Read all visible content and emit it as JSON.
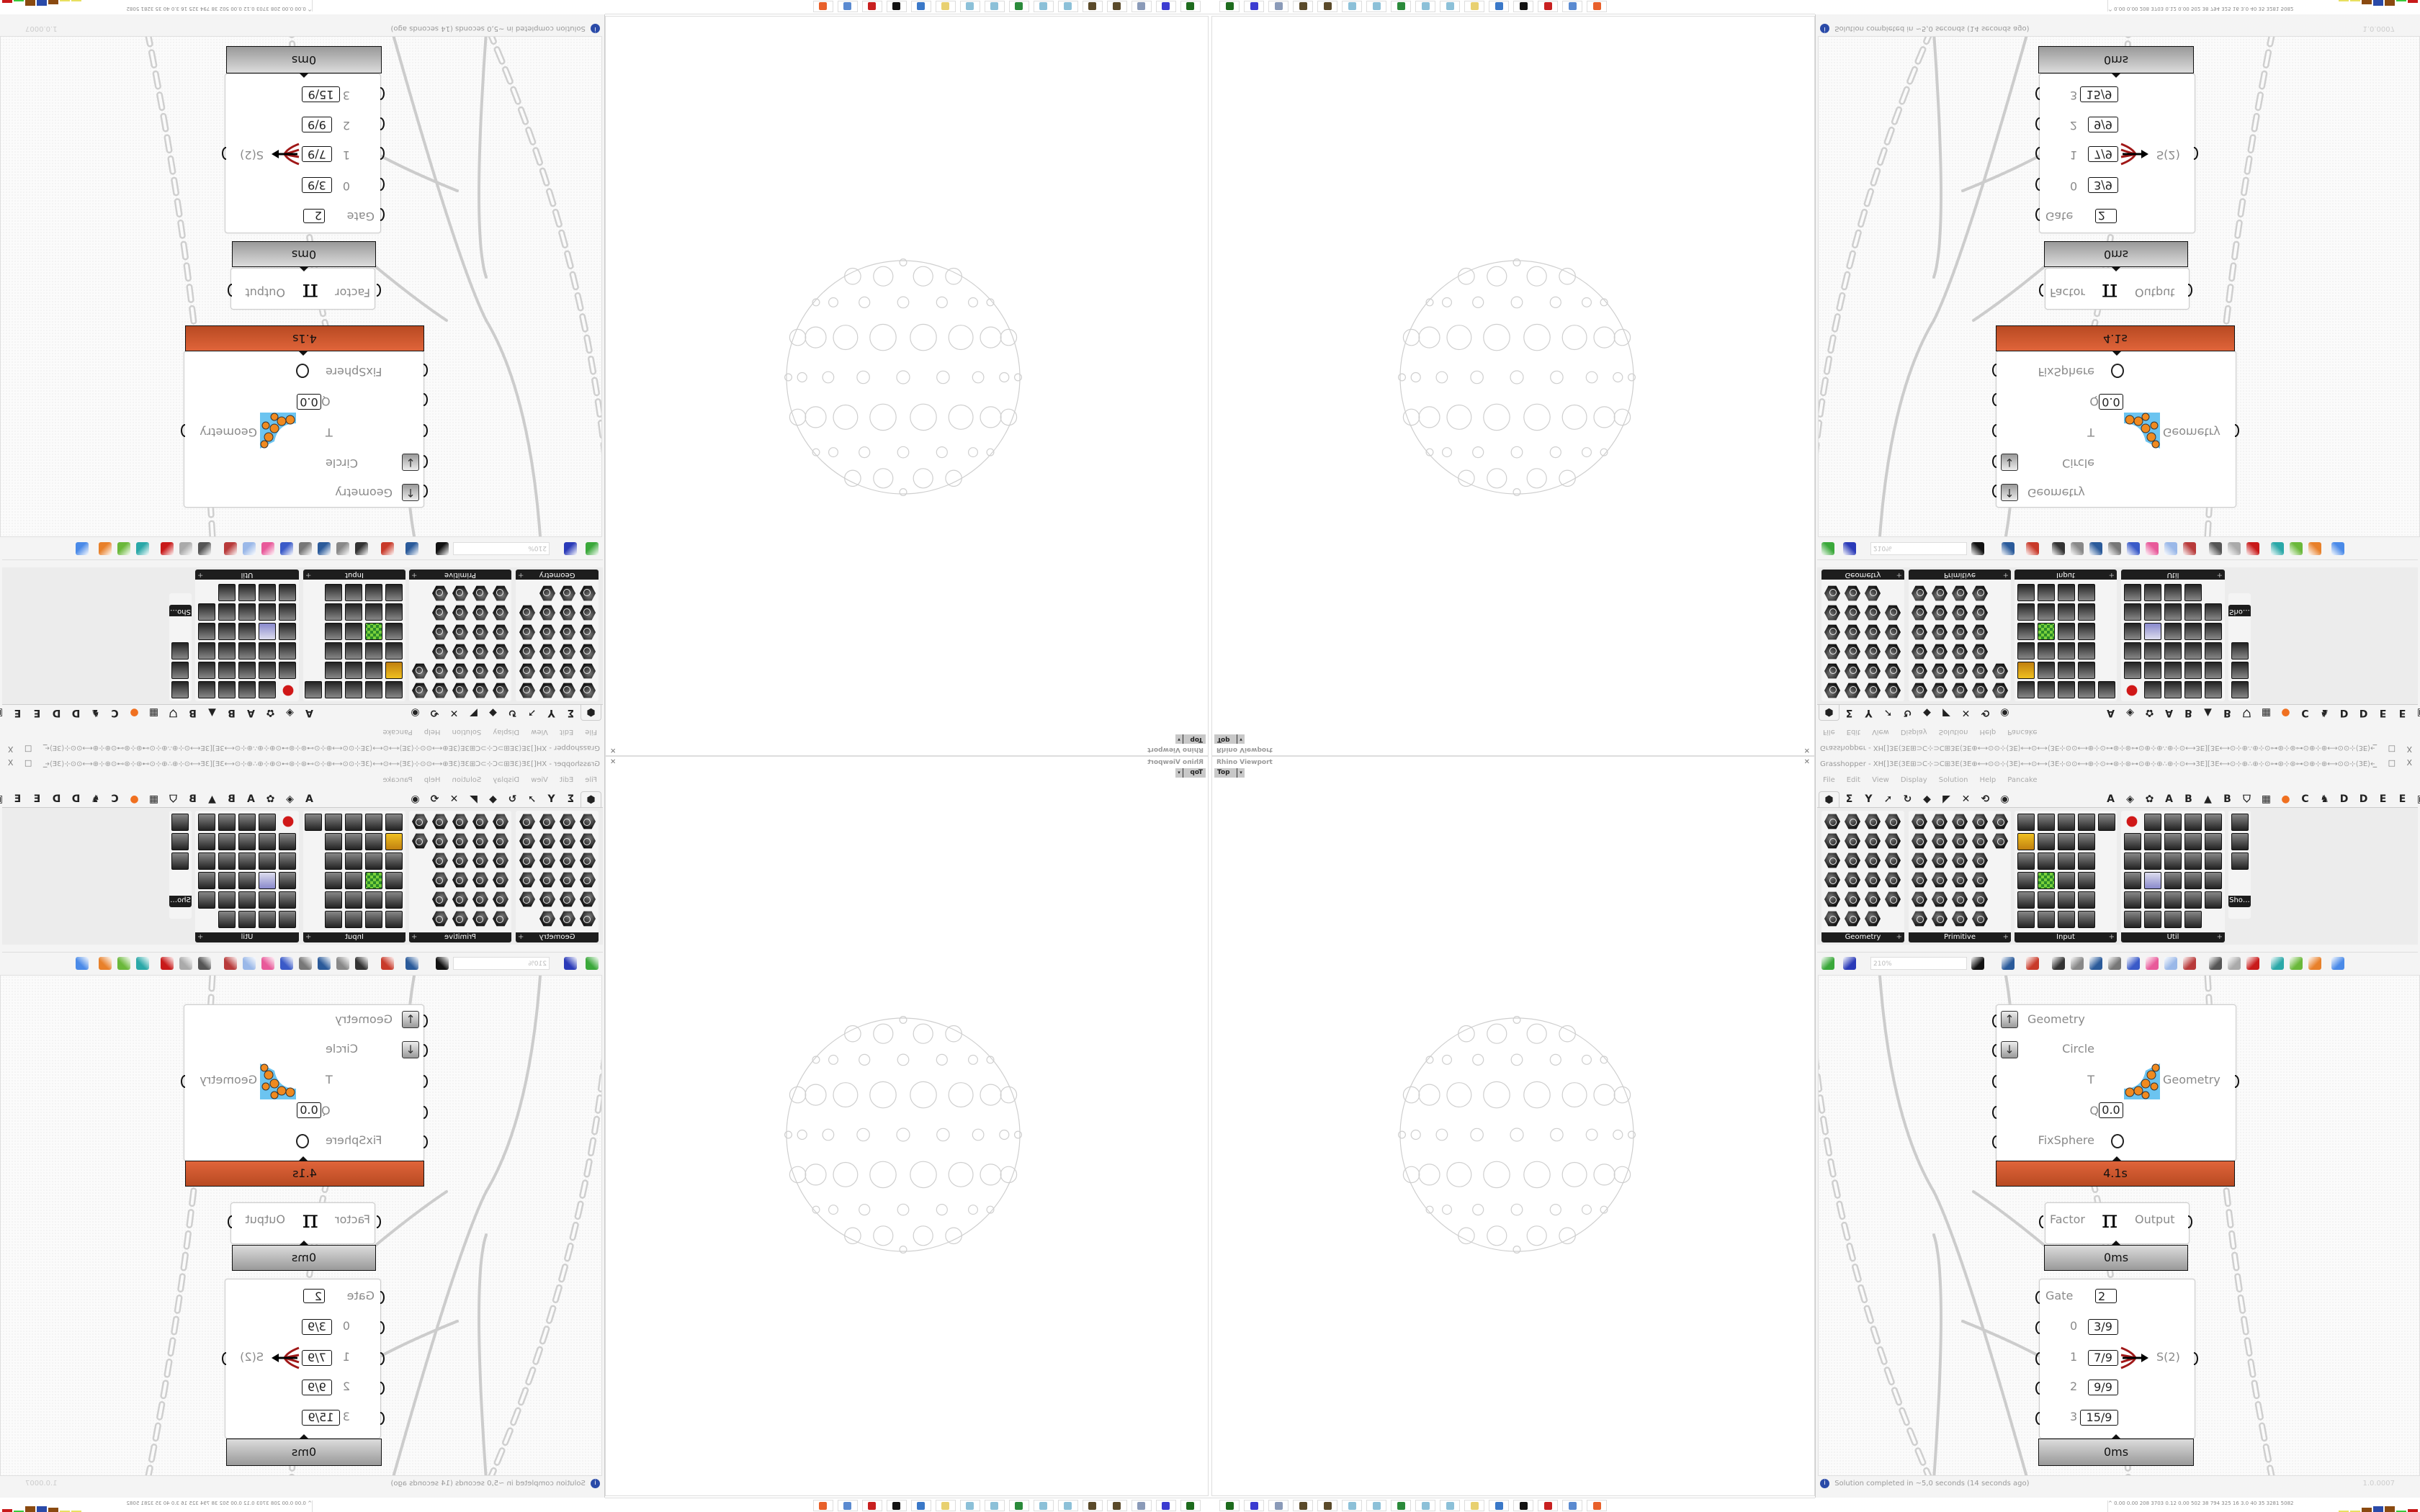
{
  "rhino": {
    "title": "Rhino Viewport",
    "close_glyph": "✕",
    "view_label": "Top",
    "dropdown_glyph": "▾"
  },
  "taskbar": {
    "icons": [
      {
        "name": "device-manager-icon",
        "color": "#1d6b1d"
      },
      {
        "name": "floppy-64-icon",
        "color": "#3a3ad0"
      },
      {
        "name": "scanner-icon",
        "color": "#8a9ab8"
      },
      {
        "name": "rock-icon",
        "color": "#5a4a2a"
      },
      {
        "name": "rock-icon-2",
        "color": "#5a4a2a"
      },
      {
        "name": "notepad-icon",
        "color": "#8cc0d8"
      },
      {
        "name": "notepad-icon-2",
        "color": "#8cc0d8"
      },
      {
        "name": "system-monitor-icon",
        "color": "#2a8a3a"
      },
      {
        "name": "notepad-icon-3",
        "color": "#8cc0d8"
      },
      {
        "name": "notepad-icon-4",
        "color": "#8cc0d8"
      },
      {
        "name": "folder-icon",
        "color": "#e8d070"
      },
      {
        "name": "remote-desktop-icon",
        "color": "#3a78c8"
      },
      {
        "name": "rhino-icon",
        "color": "#111111"
      },
      {
        "name": "virus-icon",
        "color": "#c82020"
      },
      {
        "name": "calculator-icon",
        "color": "#5a8ad0"
      },
      {
        "name": "firefox-icon",
        "color": "#e8602a"
      }
    ]
  },
  "gh": {
    "title": "Grasshopper - XH[]3E⟨3E⊞⊃C⊹⊃C⊞3E⟨3E⊕⟷⊙⊙⊹⟨3E⟩⟷⊙⟷⟨3E⊹⊙⊙⟷⊕⊹⊙⊶⊛⊹⊛⊶⊙⊕⊹⊕∴⊕⊹⊙⟷3E][3E⟷⊙⊹⊕∴⊕⊹⊙⊶⊛⊹⊛⊶⊙⊕⊹⊕⟷⊙⊙⊹⟨3E⟩⟷⊙⟷…",
    "window_buttons": "_ □ X",
    "menu": [
      "File",
      "Edit",
      "View",
      "Display",
      "Solution",
      "Help",
      "Pancake"
    ],
    "tabs": [
      {
        "name": "tab-params",
        "glyph": "⬢",
        "selected": true
      },
      {
        "name": "tab-maths",
        "glyph": "Σ"
      },
      {
        "name": "tab-sets",
        "glyph": "Y"
      },
      {
        "name": "tab-vector",
        "glyph": "➚"
      },
      {
        "name": "tab-curve",
        "glyph": "↻"
      },
      {
        "name": "tab-surface",
        "glyph": "◆"
      },
      {
        "name": "tab-mesh",
        "glyph": "◤"
      },
      {
        "name": "tab-intersect",
        "glyph": "✕"
      },
      {
        "name": "tab-transform",
        "glyph": "⟲"
      },
      {
        "name": "tab-display",
        "glyph": "◉"
      },
      {
        "name": "spacer",
        "glyph": ""
      },
      {
        "name": "tab-a",
        "glyph": "A"
      },
      {
        "name": "tab-gem",
        "glyph": "◈"
      },
      {
        "name": "tab-puzzle",
        "glyph": "✿"
      },
      {
        "name": "tab-a2",
        "glyph": "A"
      },
      {
        "name": "tab-b",
        "glyph": "B"
      },
      {
        "name": "tab-mountain",
        "glyph": "▲"
      },
      {
        "name": "tab-b2",
        "glyph": "B"
      },
      {
        "name": "tab-shield",
        "glyph": "⛉"
      },
      {
        "name": "tab-grid",
        "glyph": "▦"
      },
      {
        "name": "tab-orange",
        "glyph": "●"
      },
      {
        "name": "tab-c",
        "glyph": "C"
      },
      {
        "name": "tab-bird",
        "glyph": "♞"
      },
      {
        "name": "tab-d",
        "glyph": "D"
      },
      {
        "name": "tab-d2",
        "glyph": "D"
      },
      {
        "name": "tab-e",
        "glyph": "E"
      },
      {
        "name": "tab-e2",
        "glyph": "E"
      },
      {
        "name": "tab-frame",
        "glyph": "▣"
      },
      {
        "name": "tab-e3",
        "glyph": "E"
      }
    ],
    "panels": [
      {
        "label": "Geometry",
        "plus": "+"
      },
      {
        "label": "Primitive",
        "plus": "+"
      },
      {
        "label": "Input",
        "plus": "+"
      },
      {
        "label": "Util",
        "plus": "+"
      },
      {
        "label": "Sho…",
        "plus": ""
      }
    ],
    "zoom": "210%",
    "toolbar_icons": [
      {
        "name": "open-file-icon",
        "color": "#3aa83a"
      },
      {
        "name": "save-file-icon",
        "color": "#2a3ab8"
      },
      {
        "name": "zoom-extents-icon",
        "color": "#111111"
      },
      {
        "name": "preview-eye-icon",
        "color": "#2a5a9a"
      },
      {
        "name": "sketch-icon",
        "color": "#c83a2a"
      },
      {
        "name": "cluster-icon",
        "color": "#333333"
      },
      {
        "name": "email-icon",
        "color": "#888888"
      },
      {
        "name": "gha-icon",
        "color": "#2a5a9a"
      },
      {
        "name": "image-icon",
        "color": "#777777"
      },
      {
        "name": "search-icon",
        "color": "#3a5ac8"
      },
      {
        "name": "package-icon",
        "color": "#e85a9a"
      },
      {
        "name": "bulb-icon",
        "color": "#9ab8e8"
      },
      {
        "name": "wires-icon",
        "color": "#b83a3a"
      },
      {
        "name": "shaded-icon",
        "color": "#555555"
      },
      {
        "name": "wireframe-icon",
        "color": "#aaaaaa"
      },
      {
        "name": "red-box-icon",
        "color": "#c81a1a"
      },
      {
        "name": "teal-shape-icon",
        "color": "#2aa8a8"
      },
      {
        "name": "green-shape-icon",
        "color": "#6ab83a"
      },
      {
        "name": "half-sphere-icon",
        "color": "#e8802a"
      },
      {
        "name": "blue-sphere-icon",
        "color": "#4a8ae8"
      }
    ],
    "status": "Solution completed in ~5,0 seconds (14 seconds ago)",
    "status_icon": "i",
    "version": "1.0.0007"
  },
  "tray": {
    "expand_glyph": "^",
    "text": "0.00 0.00 208 3703 0.12 0.00 502  38  794  325  16  3.0  40  35  3281 5082"
  },
  "nodes": {
    "main": {
      "inputs": [
        "Geometry",
        "Circle",
        "T",
        "Q",
        "FixSphere"
      ],
      "q_value": "0.0",
      "output": "Geometry",
      "time": "4.1s"
    },
    "pi": {
      "input": "Factor",
      "symbol": "π",
      "output": "Output",
      "time": "0ms"
    },
    "gate": {
      "gate_label": "Gate",
      "gate_value": "2",
      "rows": [
        {
          "idx": "0",
          "val": "3/9"
        },
        {
          "idx": "1",
          "val": "7/9"
        },
        {
          "idx": "2",
          "val": "9/9"
        },
        {
          "idx": "3",
          "val": "15/9"
        }
      ],
      "output": "S(2)",
      "time": "0ms"
    }
  },
  "colors": {
    "node_time_orange": "#d45a30",
    "info_blue": "#2a4aa8"
  }
}
